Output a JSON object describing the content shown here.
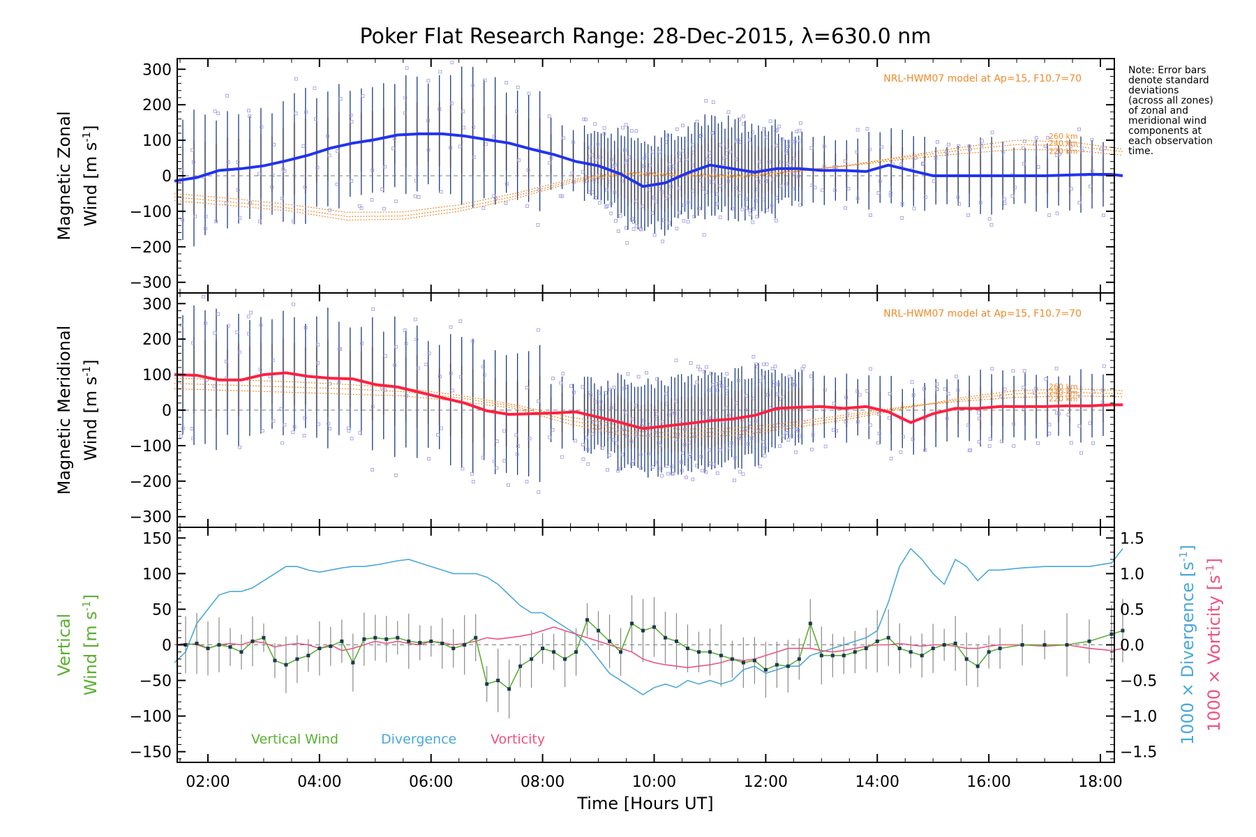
{
  "title": "Poker Flat Research Range: 28-Dec-2015, λ=630.0 nm",
  "note": "Note: Error bars denote standard deviations (across all zones) of zonal and meridional wind components at each observation time.",
  "note_lines": [
    "Note: Error bars",
    "denote standard",
    "deviations",
    "(across all zones)",
    "of zonal and",
    "meridional wind",
    "components at",
    "each observation",
    "time."
  ],
  "colors": {
    "zonal": "#2233ee",
    "zonal_mid": "#45a6e0",
    "meridional": "#ff2040",
    "meridional_mid": "#ff5c98",
    "model": "#f08a28",
    "scatter": "#9a96dc",
    "errbar": "#1a3a80",
    "vertical": "#5ab030",
    "divergence": "#4aa8d8",
    "vorticity": "#f0507e"
  },
  "chart_data": [
    {
      "type": "line",
      "name": "zonal",
      "ylabel_line1": "Magnetic Zonal",
      "ylabel_line2": "Wind [m s",
      "ylabel_sup": "-1",
      "ylabel_close": "]",
      "ylim": [
        -330,
        330
      ],
      "yticks": [
        -300,
        -200,
        -100,
        0,
        100,
        200,
        300
      ],
      "model_label": "NRL-HWM07 model at Ap=15, F10.7=70",
      "alt_labels": [
        "260 km",
        "240 km",
        "220 km"
      ],
      "x": [
        1.4,
        1.8,
        2.2,
        2.6,
        3.0,
        3.4,
        3.8,
        4.2,
        4.6,
        5.0,
        5.4,
        5.8,
        6.2,
        6.6,
        7.0,
        7.4,
        7.8,
        8.2,
        8.6,
        9.0,
        9.4,
        9.8,
        10.2,
        10.6,
        11.0,
        11.4,
        11.8,
        12.2,
        12.6,
        13.0,
        13.4,
        13.8,
        14.2,
        14.6,
        15.0,
        15.4,
        15.8,
        16.2,
        16.6,
        17.0,
        17.4,
        17.8,
        18.2,
        18.4
      ],
      "y": [
        -15,
        -5,
        15,
        20,
        28,
        42,
        58,
        78,
        92,
        102,
        115,
        118,
        118,
        112,
        102,
        92,
        75,
        60,
        40,
        28,
        5,
        -30,
        -20,
        8,
        30,
        20,
        10,
        20,
        20,
        15,
        15,
        12,
        30,
        15,
        0,
        0,
        0,
        0,
        0,
        0,
        2,
        4,
        4,
        0
      ],
      "model_x": [
        1.4,
        2.5,
        3.5,
        4.5,
        5.5,
        6.5,
        7.5,
        8.5,
        9.5,
        10.5,
        11.5,
        12.5,
        13.5,
        14.5,
        15.5,
        16.5,
        17.5,
        18.4
      ],
      "model_series": [
        {
          "name": "260 km",
          "y": [
            -70,
            -85,
            -100,
            -125,
            -122,
            -100,
            -65,
            -20,
            5,
            0,
            -5,
            10,
            30,
            55,
            80,
            100,
            95,
            75
          ]
        },
        {
          "name": "240 km",
          "y": [
            -60,
            -75,
            -92,
            -115,
            -113,
            -92,
            -58,
            -15,
            8,
            3,
            -2,
            12,
            30,
            52,
            72,
            88,
            84,
            68
          ]
        },
        {
          "name": "220 km",
          "y": [
            -50,
            -65,
            -82,
            -103,
            -102,
            -82,
            -50,
            -10,
            10,
            6,
            2,
            14,
            28,
            47,
            62,
            74,
            72,
            58
          ]
        }
      ]
    },
    {
      "type": "line",
      "name": "meridional",
      "ylabel_line1": "Magnetic Meridional",
      "ylabel_line2": "Wind [m s",
      "ylabel_sup": "-1",
      "ylabel_close": "]",
      "ylim": [
        -330,
        330
      ],
      "yticks": [
        -300,
        -200,
        -100,
        0,
        100,
        200,
        300
      ],
      "model_label": "NRL-HWM07 model at Ap=15, F10.7=70",
      "alt_labels": [
        "260 km",
        "240 km",
        "220 km"
      ],
      "x": [
        1.4,
        1.8,
        2.2,
        2.6,
        3.0,
        3.4,
        3.8,
        4.2,
        4.6,
        5.0,
        5.4,
        5.8,
        6.2,
        6.6,
        7.0,
        7.4,
        7.8,
        8.2,
        8.6,
        9.0,
        9.4,
        9.8,
        10.2,
        10.6,
        11.0,
        11.4,
        11.8,
        12.2,
        12.6,
        13.0,
        13.4,
        13.8,
        14.2,
        14.6,
        15.0,
        15.4,
        15.8,
        16.2,
        16.6,
        17.0,
        17.4,
        17.8,
        18.2,
        18.4
      ],
      "y": [
        100,
        98,
        85,
        85,
        100,
        105,
        95,
        90,
        88,
        72,
        65,
        50,
        35,
        20,
        -2,
        -12,
        -10,
        -8,
        -5,
        -20,
        -35,
        -52,
        -45,
        -38,
        -30,
        -25,
        -15,
        5,
        8,
        10,
        5,
        10,
        -5,
        -35,
        -10,
        5,
        5,
        10,
        10,
        10,
        12,
        12,
        15,
        15
      ],
      "model_x": [
        1.4,
        2.5,
        3.5,
        4.5,
        5.5,
        6.5,
        7.5,
        8.5,
        9.5,
        10.5,
        11.5,
        12.5,
        13.5,
        14.5,
        15.5,
        16.5,
        17.5,
        18.4
      ],
      "model_series": [
        {
          "name": "260 km",
          "y": [
            60,
            55,
            50,
            45,
            40,
            25,
            5,
            -40,
            -70,
            -78,
            -70,
            -50,
            -25,
            5,
            35,
            55,
            60,
            55
          ]
        },
        {
          "name": "240 km",
          "y": [
            75,
            70,
            65,
            60,
            52,
            35,
            10,
            -30,
            -58,
            -66,
            -60,
            -42,
            -18,
            8,
            30,
            46,
            50,
            46
          ]
        },
        {
          "name": "220 km",
          "y": [
            90,
            85,
            80,
            72,
            62,
            42,
            15,
            -20,
            -45,
            -54,
            -50,
            -34,
            -12,
            10,
            25,
            36,
            40,
            38
          ]
        }
      ]
    },
    {
      "type": "line",
      "name": "vertical-divergence-vorticity",
      "ylabel_line1": "Vertical",
      "ylabel_line2": "Wind [m s",
      "ylabel_sup": "-1",
      "ylabel_close": "]",
      "ylim": [
        -165,
        165
      ],
      "yticks": [
        -150,
        -100,
        -50,
        0,
        50,
        100,
        150
      ],
      "y2lim": [
        -1.65,
        1.65
      ],
      "y2ticks": [
        "-1.5",
        "-1.0",
        "-0.5",
        "0.0",
        "0.5",
        "1.0",
        "1.5"
      ],
      "y2ticks_num": [
        -1.5,
        -1.0,
        -0.5,
        0.0,
        0.5,
        1.0,
        1.5
      ],
      "y2label_div": "1000 × Divergence [s",
      "y2label_vort": "1000 × Vorticity [s",
      "y2label_sup": "-1",
      "y2label_close": "]",
      "legend": [
        "Vertical Wind",
        "Divergence",
        "Vorticity"
      ],
      "vertical": {
        "x": [
          1.6,
          1.8,
          2.0,
          2.2,
          2.4,
          2.6,
          2.8,
          3.0,
          3.2,
          3.4,
          3.6,
          3.8,
          4.0,
          4.2,
          4.4,
          4.6,
          4.8,
          5.0,
          5.2,
          5.4,
          5.6,
          5.8,
          6.0,
          6.2,
          6.4,
          6.6,
          6.8,
          7.0,
          7.2,
          7.4,
          7.6,
          7.8,
          8.0,
          8.2,
          8.4,
          8.6,
          8.8,
          9.0,
          9.2,
          9.4,
          9.6,
          9.8,
          10.0,
          10.2,
          10.4,
          10.6,
          10.8,
          11.0,
          11.2,
          11.4,
          11.6,
          11.8,
          12.0,
          12.2,
          12.4,
          12.6,
          12.8,
          13.0,
          13.2,
          13.4,
          13.6,
          13.8,
          14.0,
          14.2,
          14.4,
          14.6,
          14.8,
          15.0,
          15.2,
          15.4,
          15.6,
          15.8,
          16.0,
          16.2,
          16.6,
          17.0,
          17.4,
          17.8,
          18.2,
          18.4
        ],
        "y": [
          0,
          2,
          -5,
          0,
          -3,
          -10,
          5,
          10,
          -22,
          -28,
          -20,
          -15,
          -5,
          -2,
          5,
          -25,
          8,
          10,
          8,
          10,
          5,
          3,
          5,
          2,
          -5,
          0,
          10,
          -55,
          -50,
          -62,
          -30,
          -20,
          -5,
          -10,
          -20,
          -10,
          35,
          20,
          5,
          -10,
          30,
          20,
          25,
          10,
          5,
          -5,
          -10,
          -10,
          -15,
          -20,
          -25,
          -22,
          -35,
          -28,
          -30,
          -20,
          30,
          -15,
          -15,
          -15,
          -10,
          -5,
          5,
          10,
          -5,
          -10,
          -15,
          -5,
          0,
          2,
          -20,
          -30,
          -10,
          -5,
          0,
          0,
          0,
          5,
          15,
          20
        ]
      },
      "divergence": {
        "x": [
          1.4,
          1.6,
          1.8,
          2.0,
          2.2,
          2.4,
          2.6,
          2.8,
          3.0,
          3.2,
          3.4,
          3.6,
          3.8,
          4.0,
          4.2,
          4.4,
          4.6,
          4.8,
          5.0,
          5.2,
          5.4,
          5.6,
          5.8,
          6.0,
          6.2,
          6.4,
          6.6,
          6.8,
          7.0,
          7.2,
          7.4,
          7.6,
          7.8,
          8.0,
          8.2,
          8.4,
          8.6,
          8.8,
          9.0,
          9.2,
          9.4,
          9.6,
          9.8,
          10.0,
          10.2,
          10.4,
          10.6,
          10.8,
          11.0,
          11.2,
          11.4,
          11.6,
          11.8,
          12.0,
          12.2,
          12.4,
          12.6,
          12.8,
          13.0,
          13.2,
          13.4,
          13.6,
          13.8,
          14.0,
          14.2,
          14.4,
          14.6,
          14.8,
          15.0,
          15.2,
          15.4,
          15.6,
          15.8,
          16.0,
          16.2,
          16.6,
          17.0,
          17.4,
          17.8,
          18.2,
          18.4
        ],
        "y": [
          -0.25,
          -0.1,
          0.3,
          0.5,
          0.7,
          0.75,
          0.75,
          0.8,
          0.9,
          1.0,
          1.1,
          1.1,
          1.05,
          1.02,
          1.05,
          1.08,
          1.1,
          1.1,
          1.12,
          1.15,
          1.18,
          1.2,
          1.15,
          1.1,
          1.05,
          1.0,
          1.0,
          1.0,
          0.95,
          0.85,
          0.7,
          0.55,
          0.45,
          0.45,
          0.35,
          0.25,
          0.15,
          0.0,
          -0.2,
          -0.4,
          -0.5,
          -0.6,
          -0.7,
          -0.6,
          -0.55,
          -0.6,
          -0.5,
          -0.55,
          -0.5,
          -0.55,
          -0.5,
          -0.35,
          -0.3,
          -0.4,
          -0.35,
          -0.3,
          -0.3,
          -0.15,
          -0.1,
          -0.05,
          0.0,
          0.05,
          0.1,
          0.2,
          0.6,
          1.1,
          1.35,
          1.2,
          1.0,
          0.85,
          1.2,
          1.1,
          0.9,
          1.05,
          1.05,
          1.08,
          1.1,
          1.1,
          1.1,
          1.15,
          1.35
        ]
      },
      "vorticity": {
        "x": [
          1.4,
          1.6,
          1.8,
          2.0,
          2.2,
          2.4,
          2.6,
          2.8,
          3.0,
          3.2,
          3.4,
          3.6,
          3.8,
          4.0,
          4.2,
          4.4,
          4.6,
          4.8,
          5.0,
          5.2,
          5.4,
          5.6,
          5.8,
          6.0,
          6.2,
          6.4,
          6.6,
          6.8,
          7.0,
          7.2,
          7.4,
          7.6,
          7.8,
          8.0,
          8.2,
          8.4,
          8.6,
          8.8,
          9.0,
          9.2,
          9.4,
          9.6,
          9.8,
          10.0,
          10.2,
          10.4,
          10.6,
          10.8,
          11.0,
          11.2,
          11.4,
          11.6,
          11.8,
          12.0,
          12.2,
          12.4,
          12.6,
          12.8,
          13.0,
          13.2,
          13.4,
          13.6,
          13.8,
          14.0,
          14.2,
          14.4,
          14.6,
          14.8,
          15.0,
          15.2,
          15.4,
          15.6,
          15.8,
          16.0,
          16.2,
          16.6,
          17.0,
          17.4,
          17.8,
          18.2,
          18.4
        ],
        "y": [
          0.0,
          0.02,
          0.0,
          -0.05,
          0.0,
          0.02,
          0.0,
          0.05,
          0.03,
          -0.03,
          0.0,
          0.02,
          0.0,
          -0.05,
          0.0,
          -0.08,
          -0.05,
          0.0,
          0.05,
          0.02,
          0.05,
          0.02,
          0.0,
          0.05,
          0.03,
          0.0,
          0.02,
          0.05,
          0.1,
          0.08,
          0.1,
          0.12,
          0.15,
          0.2,
          0.25,
          0.2,
          0.15,
          0.1,
          0.05,
          0.0,
          -0.05,
          -0.1,
          -0.2,
          -0.25,
          -0.28,
          -0.3,
          -0.32,
          -0.3,
          -0.28,
          -0.25,
          -0.2,
          -0.22,
          -0.2,
          -0.15,
          -0.1,
          -0.05,
          -0.05,
          -0.05,
          -0.08,
          -0.1,
          -0.08,
          -0.05,
          -0.02,
          0.0,
          0.0,
          0.02,
          0.0,
          -0.02,
          0.0,
          0.0,
          -0.02,
          -0.05,
          -0.05,
          -0.02,
          0.0,
          0.0,
          -0.02,
          0.0,
          -0.05,
          -0.08,
          -0.05
        ]
      }
    }
  ],
  "xaxis": {
    "label": "Time [Hours UT]",
    "xlim": [
      1.45,
      18.25
    ],
    "ticks": [
      2,
      4,
      6,
      8,
      10,
      12,
      14,
      16,
      18
    ],
    "tick_labels": [
      "02:00",
      "04:00",
      "06:00",
      "08:00",
      "10:00",
      "12:00",
      "14:00",
      "16:00",
      "18:00"
    ]
  }
}
